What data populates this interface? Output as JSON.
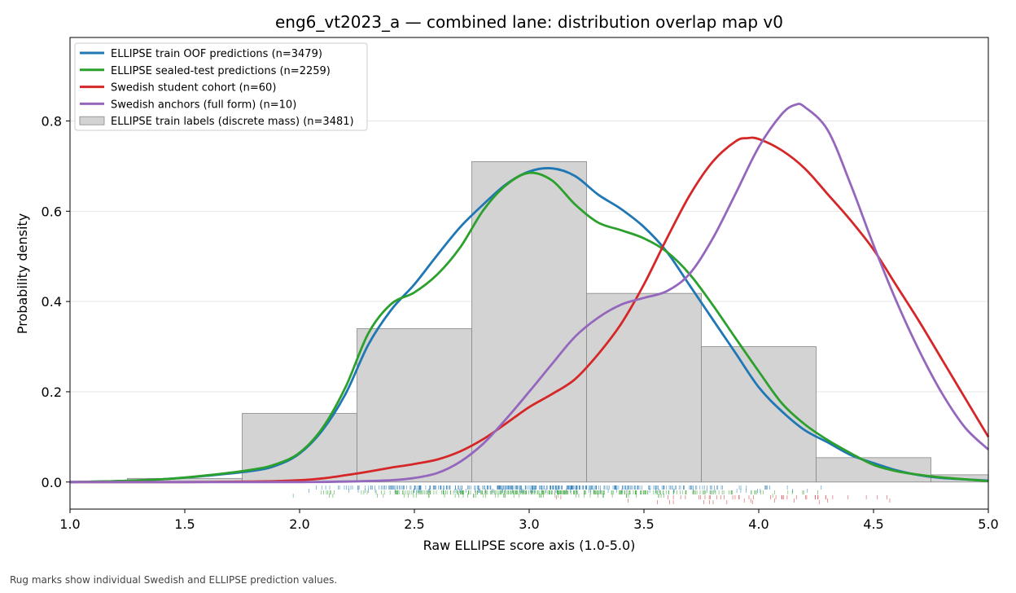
{
  "chart_data": {
    "type": "line",
    "title": "eng6_vt2023_a — combined lane: distribution overlap map v0",
    "xlabel": "Raw ELLIPSE score axis (1.0-5.0)",
    "ylabel": "Probability density",
    "xlim": [
      1.0,
      5.0
    ],
    "ylim": [
      -0.06,
      0.985
    ],
    "xticks": [
      1.0,
      1.5,
      2.0,
      2.5,
      3.0,
      3.5,
      4.0,
      4.5,
      5.0
    ],
    "xtick_labels": [
      "1.0",
      "1.5",
      "2.0",
      "2.5",
      "3.0",
      "3.5",
      "4.0",
      "4.5",
      "5.0"
    ],
    "yticks": [
      0.0,
      0.2,
      0.4,
      0.6,
      0.8
    ],
    "ytick_labels": [
      "0.0",
      "0.2",
      "0.4",
      "0.6",
      "0.8"
    ],
    "grid": "horizontal",
    "legend_position": "top-left",
    "histogram": {
      "name": "ELLIPSE train labels (discrete mass) (n=3481)",
      "color": "#d3d3d3",
      "edge_color": "#888888",
      "bins": [
        1.25,
        1.75,
        2.25,
        2.75,
        3.25,
        3.75,
        4.25,
        4.75,
        5.25
      ],
      "values": [
        0.008,
        0.152,
        0.34,
        0.71,
        0.418,
        0.3,
        0.054,
        0.016
      ]
    },
    "series": [
      {
        "name": "ELLIPSE train OOF predictions (n=3479)",
        "color": "#1f77b4",
        "x": [
          1.0,
          1.2,
          1.4,
          1.6,
          1.8,
          1.9,
          2.0,
          2.1,
          2.2,
          2.3,
          2.4,
          2.5,
          2.6,
          2.7,
          2.8,
          2.9,
          3.0,
          3.1,
          3.2,
          3.3,
          3.4,
          3.5,
          3.6,
          3.7,
          3.8,
          3.9,
          4.0,
          4.1,
          4.2,
          4.3,
          4.4,
          4.5,
          4.6,
          4.7,
          4.8,
          5.0
        ],
        "values": [
          0.0,
          0.002,
          0.006,
          0.014,
          0.025,
          0.037,
          0.063,
          0.115,
          0.195,
          0.305,
          0.382,
          0.438,
          0.503,
          0.565,
          0.615,
          0.66,
          0.688,
          0.695,
          0.678,
          0.637,
          0.605,
          0.565,
          0.51,
          0.435,
          0.36,
          0.285,
          0.21,
          0.157,
          0.115,
          0.088,
          0.06,
          0.042,
          0.026,
          0.015,
          0.009,
          0.003
        ]
      },
      {
        "name": "ELLIPSE sealed-test predictions (n=2259)",
        "color": "#2ca02c",
        "x": [
          1.0,
          1.2,
          1.4,
          1.6,
          1.8,
          1.9,
          2.0,
          2.1,
          2.2,
          2.3,
          2.4,
          2.5,
          2.6,
          2.7,
          2.8,
          2.9,
          3.0,
          3.1,
          3.2,
          3.3,
          3.4,
          3.5,
          3.6,
          3.7,
          3.8,
          3.9,
          4.0,
          4.1,
          4.2,
          4.3,
          4.4,
          4.5,
          4.6,
          4.7,
          4.8,
          5.0
        ],
        "values": [
          0.0,
          0.002,
          0.006,
          0.015,
          0.028,
          0.04,
          0.065,
          0.12,
          0.21,
          0.33,
          0.395,
          0.42,
          0.46,
          0.52,
          0.602,
          0.658,
          0.685,
          0.668,
          0.615,
          0.575,
          0.558,
          0.54,
          0.51,
          0.46,
          0.392,
          0.318,
          0.245,
          0.175,
          0.128,
          0.093,
          0.064,
          0.038,
          0.024,
          0.016,
          0.01,
          0.002
        ]
      },
      {
        "name": "Swedish student cohort (n=60)",
        "color": "#d62728",
        "x": [
          1.0,
          1.5,
          1.8,
          2.0,
          2.1,
          2.2,
          2.3,
          2.4,
          2.5,
          2.6,
          2.7,
          2.8,
          2.9,
          3.0,
          3.1,
          3.2,
          3.3,
          3.4,
          3.5,
          3.6,
          3.7,
          3.8,
          3.9,
          3.95,
          4.0,
          4.1,
          4.2,
          4.3,
          4.4,
          4.5,
          4.6,
          4.7,
          4.8,
          4.9,
          5.0
        ],
        "values": [
          0.0,
          0.0,
          0.001,
          0.004,
          0.008,
          0.015,
          0.023,
          0.032,
          0.04,
          0.05,
          0.068,
          0.095,
          0.13,
          0.166,
          0.195,
          0.228,
          0.283,
          0.35,
          0.438,
          0.54,
          0.636,
          0.71,
          0.755,
          0.762,
          0.76,
          0.735,
          0.695,
          0.638,
          0.58,
          0.515,
          0.435,
          0.355,
          0.27,
          0.185,
          0.1
        ]
      },
      {
        "name": "Swedish anchors (full form) (n=10)",
        "color": "#9467bd",
        "x": [
          1.0,
          1.5,
          2.0,
          2.2,
          2.4,
          2.5,
          2.6,
          2.7,
          2.8,
          2.9,
          3.0,
          3.1,
          3.2,
          3.3,
          3.4,
          3.5,
          3.6,
          3.7,
          3.8,
          3.9,
          4.0,
          4.1,
          4.16,
          4.2,
          4.3,
          4.4,
          4.5,
          4.6,
          4.7,
          4.8,
          4.9,
          5.0
        ],
        "values": [
          0.0,
          0.0,
          0.0,
          0.001,
          0.004,
          0.009,
          0.02,
          0.045,
          0.085,
          0.14,
          0.2,
          0.262,
          0.322,
          0.364,
          0.393,
          0.408,
          0.423,
          0.462,
          0.54,
          0.64,
          0.742,
          0.815,
          0.836,
          0.831,
          0.78,
          0.66,
          0.525,
          0.4,
          0.29,
          0.195,
          0.12,
          0.072
        ]
      }
    ],
    "rugs": [
      {
        "color": "#1f77b4",
        "row": 1,
        "density": 420,
        "range": [
          1.7,
          4.9
        ],
        "center": 3.1,
        "spread": 0.45
      },
      {
        "color": "#2ca02c",
        "row": 2,
        "density": 330,
        "range": [
          1.6,
          4.8
        ],
        "center": 3.1,
        "spread": 0.45
      },
      {
        "color": "#d62728",
        "row": 3,
        "density": 48,
        "range": [
          3.1,
          4.8
        ],
        "center": 4.0,
        "spread": 0.35
      },
      {
        "color": "#d62728",
        "row": 4,
        "density": 10,
        "range": [
          3.2,
          4.6
        ],
        "center": 3.9,
        "spread": 0.3
      }
    ]
  },
  "caption": "Rug marks show individual Swedish and ELLIPSE prediction values."
}
